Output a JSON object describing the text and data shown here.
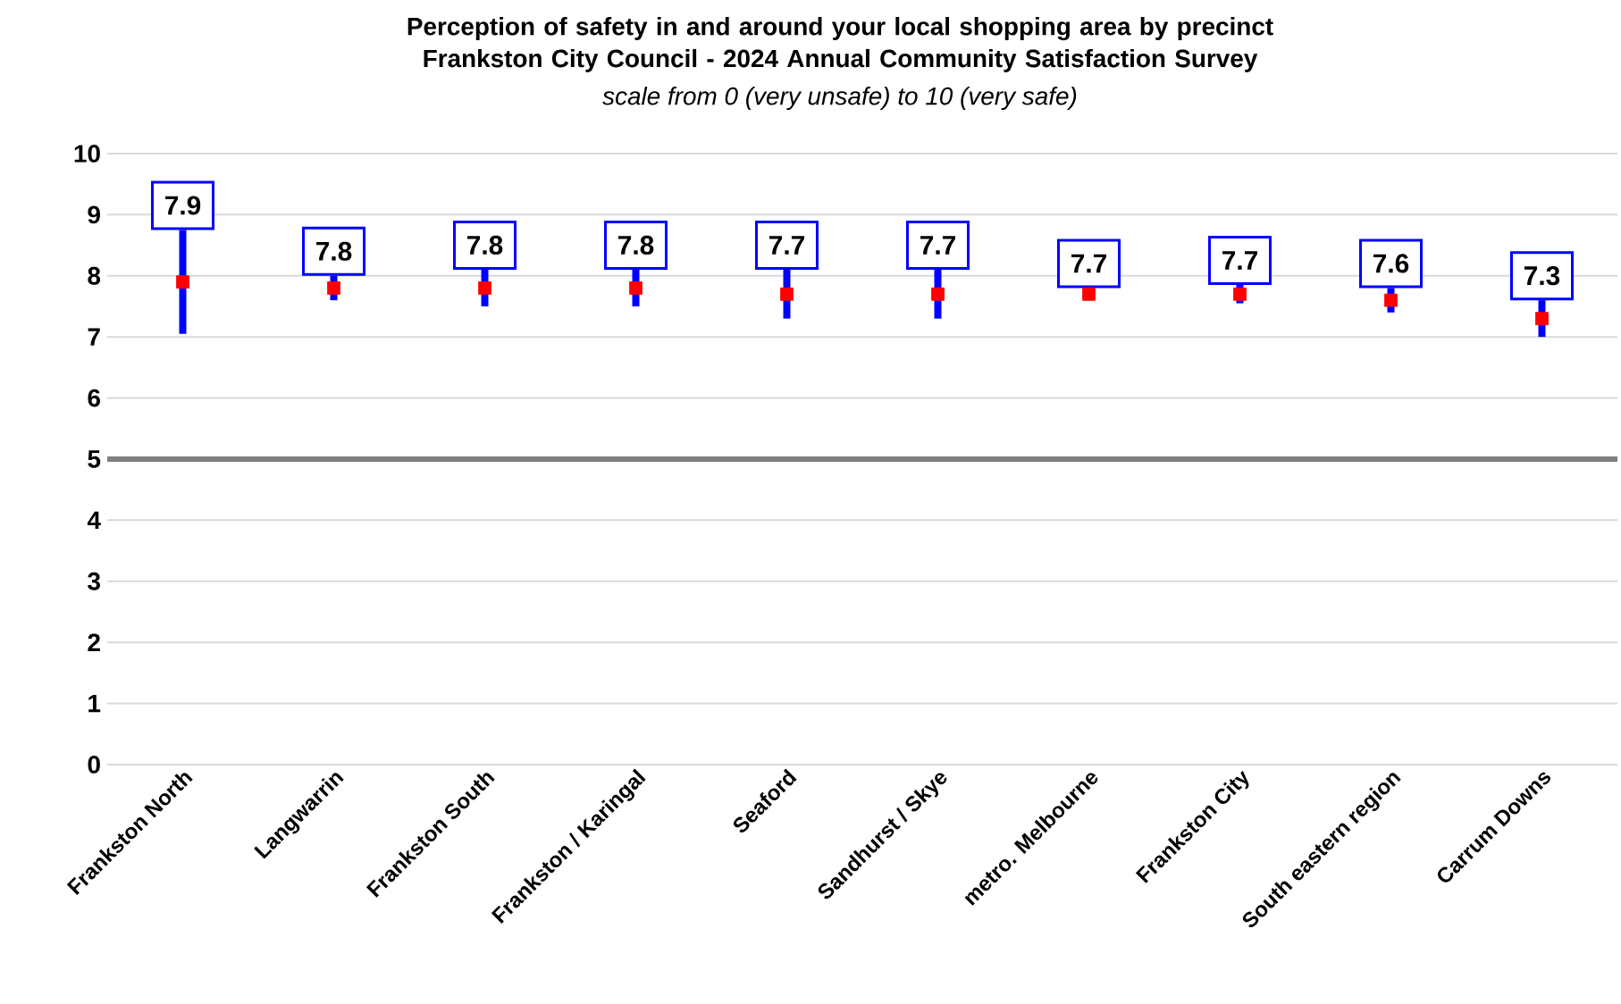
{
  "chart_data": {
    "type": "scatter",
    "title": "Perception of safety in and around your local shopping area by precinct Frankston City Council - 2024 Annual Community Satisfaction Survey",
    "subtitle": "scale from 0 (very unsafe) to 10 (very safe)",
    "categories": [
      "Frankston North",
      "Langwarrin",
      "Frankston South",
      "Frankston / Karingal",
      "Seaford",
      "Sandhurst / Skye",
      "metro. Melbourne",
      "Frankston City",
      "South eastern region",
      "Carrum Downs"
    ],
    "values": [
      7.9,
      7.8,
      7.8,
      7.8,
      7.7,
      7.7,
      7.7,
      7.7,
      7.6,
      7.3
    ],
    "errors": [
      0.85,
      0.2,
      0.3,
      0.3,
      0.4,
      0.4,
      0.1,
      0.15,
      0.2,
      0.3
    ],
    "color": "#ff0000",
    "marker": "square",
    "data_labels": true,
    "ylim": [
      0,
      10
    ],
    "yticks": [
      0,
      1,
      2,
      3,
      4,
      5,
      6,
      7,
      8,
      9,
      10
    ],
    "grid": "y",
    "ref_lines": [
      {
        "axis": "y",
        "value": 5,
        "color": "#808080"
      }
    ]
  }
}
